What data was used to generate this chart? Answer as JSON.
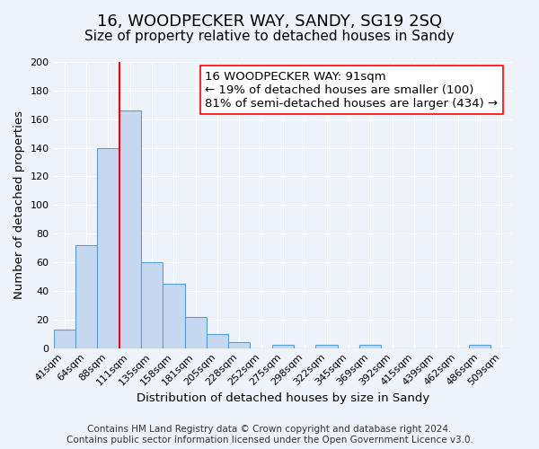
{
  "title": "16, WOODPECKER WAY, SANDY, SG19 2SQ",
  "subtitle": "Size of property relative to detached houses in Sandy",
  "xlabel": "Distribution of detached houses by size in Sandy",
  "ylabel": "Number of detached properties",
  "footer_line1": "Contains HM Land Registry data © Crown copyright and database right 2024.",
  "footer_line2": "Contains public sector information licensed under the Open Government Licence v3.0.",
  "bin_labels": [
    "41sqm",
    "64sqm",
    "88sqm",
    "111sqm",
    "135sqm",
    "158sqm",
    "181sqm",
    "205sqm",
    "228sqm",
    "252sqm",
    "275sqm",
    "298sqm",
    "322sqm",
    "345sqm",
    "369sqm",
    "392sqm",
    "415sqm",
    "439sqm",
    "462sqm",
    "486sqm",
    "509sqm"
  ],
  "bar_values": [
    13,
    72,
    140,
    166,
    60,
    45,
    22,
    10,
    4,
    0,
    2,
    0,
    2,
    0,
    2,
    0,
    0,
    0,
    0,
    2,
    0
  ],
  "bar_color": "#c5d8f0",
  "bar_edge_color": "#5a9fd4",
  "red_line_x": 2.5,
  "annotation_text_line1": "16 WOODPECKER WAY: 91sqm",
  "annotation_text_line2": "← 19% of detached houses are smaller (100)",
  "annotation_text_line3": "81% of semi-detached houses are larger (434) →",
  "ylim": [
    0,
    200
  ],
  "yticks": [
    0,
    20,
    40,
    60,
    80,
    100,
    120,
    140,
    160,
    180,
    200
  ],
  "background_color": "#eef2f9",
  "plot_bg_color": "#eef2f9",
  "grid_color": "#ffffff",
  "title_fontsize": 13,
  "subtitle_fontsize": 11,
  "axis_label_fontsize": 9.5,
  "tick_fontsize": 8,
  "annotation_fontsize": 9.5,
  "footer_fontsize": 7.5
}
